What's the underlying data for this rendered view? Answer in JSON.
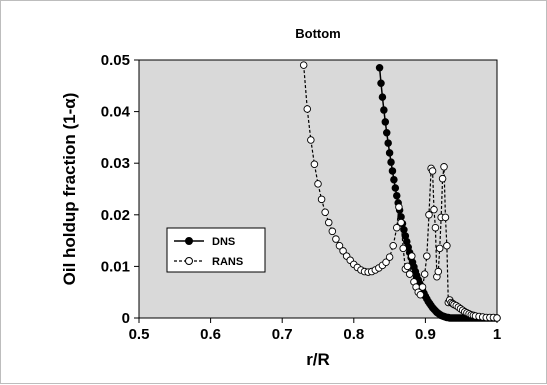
{
  "chart_data": {
    "type": "scatter",
    "title": "Bottom",
    "xlabel": "r/R",
    "ylabel": "Oil holdup fraction (1-α)",
    "xlim": [
      0.5,
      1.0
    ],
    "ylim": [
      0,
      0.05
    ],
    "x_ticks": [
      "0.5",
      "0.6",
      "0.7",
      "0.8",
      "0.9",
      "1"
    ],
    "y_ticks": [
      "0",
      "0.01",
      "0.02",
      "0.03",
      "0.04",
      "0.05"
    ],
    "grid": false,
    "plot_background": "#d9d9d9",
    "legend_position": "center-left",
    "series": [
      {
        "name": "DNS",
        "marker": "filled-circle",
        "line": "solid",
        "color": "#000000",
        "x": [
          0.836,
          0.838,
          0.84,
          0.842,
          0.844,
          0.846,
          0.848,
          0.85,
          0.852,
          0.854,
          0.856,
          0.858,
          0.86,
          0.862,
          0.864,
          0.866,
          0.868,
          0.87,
          0.872,
          0.874,
          0.876,
          0.878,
          0.88,
          0.882,
          0.884,
          0.886,
          0.888,
          0.89,
          0.892,
          0.894,
          0.896,
          0.898,
          0.9,
          0.902,
          0.904,
          0.906,
          0.908,
          0.91,
          0.912,
          0.914,
          0.916,
          0.918,
          0.92,
          0.922,
          0.924,
          0.926,
          0.928,
          0.93,
          0.932,
          0.934,
          0.936,
          0.938,
          0.94,
          0.942,
          0.944,
          0.946,
          0.948,
          0.95,
          0.952,
          0.954,
          0.956,
          0.958,
          0.96,
          0.962,
          0.964,
          0.966,
          0.968,
          0.97,
          0.972,
          0.974,
          0.976,
          0.978,
          0.98,
          0.982,
          0.984,
          0.986,
          0.988,
          0.99,
          0.992,
          0.994,
          0.996,
          0.998,
          1.0
        ],
        "y": [
          0.0485,
          0.0455,
          0.0428,
          0.0403,
          0.038,
          0.0359,
          0.0339,
          0.032,
          0.0302,
          0.0285,
          0.0268,
          0.0252,
          0.0237,
          0.0223,
          0.0209,
          0.0196,
          0.0183,
          0.0171,
          0.0159,
          0.0148,
          0.0137,
          0.0127,
          0.0117,
          0.0108,
          0.0099,
          0.009,
          0.0082,
          0.0074,
          0.0067,
          0.006,
          0.0054,
          0.0048,
          0.0042,
          0.0037,
          0.0032,
          0.0028,
          0.0024,
          0.002,
          0.0017,
          0.0014,
          0.0011,
          0.0009,
          0.0007,
          0.0005,
          0.0004,
          0.0003,
          0.0002,
          0.0001,
          0.0001,
          0.0,
          0.0,
          0.0,
          0.0,
          0.0,
          0.0,
          0.0,
          0.0,
          0.0,
          0.0,
          0.0,
          0.0,
          0.0,
          0.0,
          0.0,
          0.0,
          0.0,
          0.0,
          0.0,
          0.0,
          0.0,
          0.0,
          0.0,
          0.0,
          0.0,
          0.0,
          0.0,
          0.0,
          0.0,
          0.0,
          0.0,
          0.0,
          0.0,
          0.0
        ]
      },
      {
        "name": "RANS",
        "marker": "open-circle",
        "line": "dashed",
        "color": "#000000",
        "x": [
          0.73,
          0.735,
          0.74,
          0.745,
          0.75,
          0.755,
          0.76,
          0.765,
          0.77,
          0.775,
          0.78,
          0.785,
          0.79,
          0.795,
          0.8,
          0.805,
          0.81,
          0.815,
          0.82,
          0.825,
          0.83,
          0.835,
          0.84,
          0.845,
          0.85,
          0.855,
          0.86,
          0.863,
          0.866,
          0.869,
          0.872,
          0.875,
          0.878,
          0.881,
          0.884,
          0.887,
          0.89,
          0.893,
          0.896,
          0.899,
          0.902,
          0.905,
          0.908,
          0.91,
          0.912,
          0.914,
          0.916,
          0.918,
          0.92,
          0.922,
          0.924,
          0.926,
          0.928,
          0.93,
          0.932,
          0.934,
          0.936,
          0.938,
          0.94,
          0.943,
          0.946,
          0.949,
          0.952,
          0.955,
          0.958,
          0.961,
          0.964,
          0.967,
          0.97,
          0.975,
          0.98,
          0.985,
          0.99,
          0.995,
          1.0
        ],
        "y": [
          0.049,
          0.0405,
          0.0345,
          0.0298,
          0.026,
          0.023,
          0.0205,
          0.0185,
          0.0168,
          0.0153,
          0.014,
          0.013,
          0.012,
          0.0112,
          0.0104,
          0.0098,
          0.0093,
          0.009,
          0.0089,
          0.009,
          0.0093,
          0.0097,
          0.0102,
          0.0108,
          0.0118,
          0.014,
          0.0175,
          0.0215,
          0.0185,
          0.0135,
          0.0095,
          0.01,
          0.0085,
          0.012,
          0.007,
          0.006,
          0.005,
          0.0045,
          0.006,
          0.0085,
          0.012,
          0.02,
          0.029,
          0.0285,
          0.021,
          0.0175,
          0.008,
          0.009,
          0.0135,
          0.0195,
          0.027,
          0.0293,
          0.0195,
          0.014,
          0.003,
          0.0035,
          0.003,
          0.0028,
          0.0026,
          0.0024,
          0.0021,
          0.0018,
          0.0015,
          0.0012,
          0.001,
          0.0008,
          0.0006,
          0.0005,
          0.0004,
          0.0003,
          0.0002,
          0.0001,
          0.0001,
          0.0001,
          0.0
        ]
      }
    ]
  }
}
